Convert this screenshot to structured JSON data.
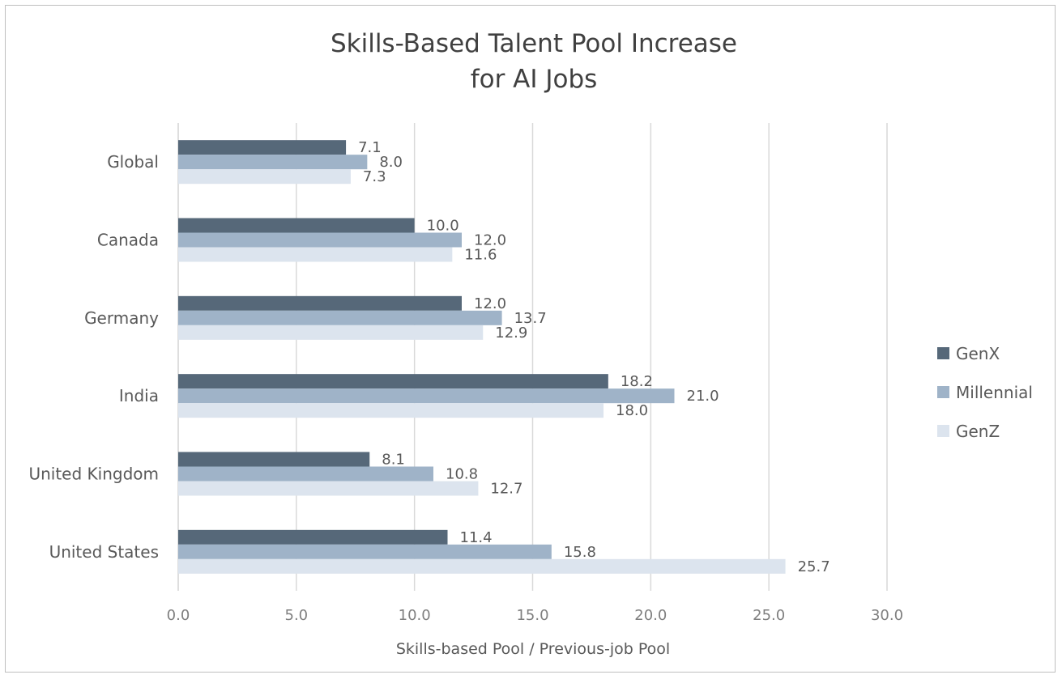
{
  "chart_data": {
    "type": "bar",
    "orientation": "horizontal",
    "title_lines": [
      "Skills-Based Talent Pool Increase",
      "for AI Jobs"
    ],
    "xlabel": "Skills-based Pool / Previous-job Pool",
    "ylabel": "",
    "categories": [
      "Global",
      "Canada",
      "Germany",
      "India",
      "United Kingdom",
      "United States"
    ],
    "xlim": [
      0,
      30
    ],
    "xticks": [
      "0.0",
      "5.0",
      "10.0",
      "15.0",
      "20.0",
      "25.0",
      "30.0"
    ],
    "grid": true,
    "legend_position": "right",
    "series": [
      {
        "name": "GenX",
        "color": "#566879",
        "values": [
          7.1,
          10.0,
          12.0,
          18.2,
          8.1,
          11.4
        ],
        "labels": [
          "7.1",
          "10.0",
          "12.0",
          "18.2",
          "8.1",
          "11.4"
        ]
      },
      {
        "name": "Millennial",
        "color": "#9fb3c8",
        "values": [
          8.0,
          12.0,
          13.7,
          21.0,
          10.8,
          15.8
        ],
        "labels": [
          "8.0",
          "12.0",
          "13.7",
          "21.0",
          "10.8",
          "15.8"
        ]
      },
      {
        "name": "GenZ",
        "color": "#dce4ee",
        "values": [
          7.3,
          11.6,
          12.9,
          18.0,
          12.7,
          25.7
        ],
        "labels": [
          "7.3",
          "11.6",
          "12.9",
          "18.0",
          "12.7",
          "25.7"
        ]
      }
    ]
  }
}
